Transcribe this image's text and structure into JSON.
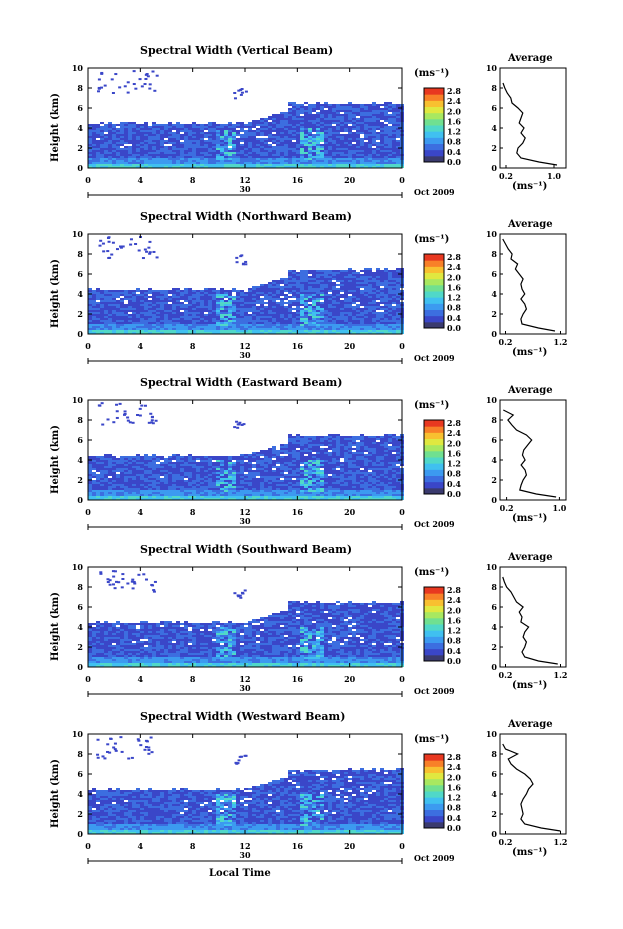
{
  "colorbar": {
    "unit": "(ms⁻¹)",
    "ticks": [
      "2.8",
      "2.4",
      "2.0",
      "1.6",
      "1.2",
      "0.8",
      "0.4",
      "0.0"
    ],
    "colors": [
      "#3a3a6e",
      "#3a46c8",
      "#3c6ee0",
      "#3c9af0",
      "#40c0f0",
      "#50d8c8",
      "#70e090",
      "#a8e860",
      "#e0e840",
      "#f8c030",
      "#f88028",
      "#e83820"
    ]
  },
  "x_ticks": [
    "0",
    "4",
    "8",
    "12",
    "16",
    "20",
    "0"
  ],
  "y_ticks": [
    "10",
    "8",
    "6",
    "4",
    "2",
    "0"
  ],
  "day_label": "30",
  "date_label": "Oct 2009",
  "ylabel": "Height (km)",
  "xlabel": "Local Time",
  "avg_title": "Average",
  "avg_xlabel": "(ms⁻¹)",
  "chart_data": [
    {
      "type": "heatmap",
      "title": "Spectral Width (Vertical Beam)",
      "xlabel": "",
      "ylabel": "Height (km)",
      "xlim": [
        0,
        24
      ],
      "ylim": [
        0,
        10
      ],
      "profile": {
        "title": "Average",
        "xticks": [
          "0.2",
          "1.0"
        ],
        "xlim": [
          0.1,
          1.2
        ],
        "height": [
          0.3,
          0.6,
          1.0,
          1.5,
          2.0,
          2.5,
          3.0,
          3.5,
          4.0,
          4.5,
          5.0,
          5.5,
          6.0,
          6.5,
          7.0,
          7.5,
          8.0,
          8.5
        ],
        "width": [
          1.05,
          0.75,
          0.45,
          0.38,
          0.4,
          0.48,
          0.52,
          0.45,
          0.5,
          0.42,
          0.45,
          0.48,
          0.4,
          0.3,
          0.28,
          0.22,
          0.18,
          0.15
        ]
      }
    },
    {
      "type": "heatmap",
      "title": "Spectral Width (Northward Beam)",
      "xlabel": "",
      "ylabel": "Height (km)",
      "xlim": [
        0,
        24
      ],
      "ylim": [
        0,
        10
      ],
      "profile": {
        "title": "Average",
        "xticks": [
          "0.2",
          "1.2"
        ],
        "xlim": [
          0.1,
          1.3
        ],
        "height": [
          0.3,
          0.6,
          1.0,
          1.5,
          2.0,
          2.5,
          3.0,
          3.5,
          4.0,
          4.5,
          5.0,
          5.5,
          6.0,
          6.5,
          7.0,
          7.5,
          8.0,
          8.5,
          9.0,
          9.5
        ],
        "width": [
          1.1,
          0.8,
          0.5,
          0.48,
          0.52,
          0.58,
          0.55,
          0.48,
          0.55,
          0.5,
          0.48,
          0.52,
          0.45,
          0.38,
          0.42,
          0.3,
          0.32,
          0.25,
          0.2,
          0.15
        ]
      }
    },
    {
      "type": "heatmap",
      "title": "Spectral Width (Eastward Beam)",
      "xlabel": "",
      "ylabel": "Height (km)",
      "xlim": [
        0,
        24
      ],
      "ylim": [
        0,
        10
      ],
      "profile": {
        "title": "Average",
        "xticks": [
          "0.2",
          "1.0"
        ],
        "xlim": [
          0.1,
          1.1
        ],
        "height": [
          0.3,
          0.6,
          1.0,
          1.5,
          2.0,
          2.5,
          3.0,
          3.5,
          4.0,
          4.5,
          5.0,
          5.5,
          6.0,
          6.5,
          7.0,
          7.5,
          8.0,
          8.5,
          9.0
        ],
        "width": [
          0.95,
          0.65,
          0.4,
          0.42,
          0.45,
          0.5,
          0.48,
          0.42,
          0.48,
          0.44,
          0.46,
          0.52,
          0.58,
          0.5,
          0.35,
          0.28,
          0.22,
          0.3,
          0.15
        ]
      }
    },
    {
      "type": "heatmap",
      "title": "Spectral Width (Southward Beam)",
      "xlabel": "",
      "ylabel": "Height (km)",
      "xlim": [
        0,
        24
      ],
      "ylim": [
        0,
        10
      ],
      "profile": {
        "title": "Average",
        "xticks": [
          "0.2",
          "1.2"
        ],
        "xlim": [
          0.1,
          1.3
        ],
        "height": [
          0.3,
          0.6,
          1.0,
          1.5,
          2.0,
          2.5,
          3.0,
          3.5,
          4.0,
          4.5,
          5.0,
          5.5,
          6.0,
          6.5,
          7.0,
          7.5,
          8.0,
          8.5,
          9.0
        ],
        "width": [
          1.15,
          0.8,
          0.55,
          0.5,
          0.55,
          0.58,
          0.52,
          0.55,
          0.62,
          0.48,
          0.5,
          0.45,
          0.52,
          0.4,
          0.35,
          0.3,
          0.22,
          0.18,
          0.15
        ]
      }
    },
    {
      "type": "heatmap",
      "title": "Spectral Width (Westward Beam)",
      "xlabel": "Local Time",
      "ylabel": "Height (km)",
      "xlim": [
        0,
        24
      ],
      "ylim": [
        0,
        10
      ],
      "profile": {
        "title": "Average",
        "xticks": [
          "0.2",
          "1.2"
        ],
        "xlim": [
          0.1,
          1.3
        ],
        "height": [
          0.3,
          0.6,
          1.0,
          1.5,
          2.0,
          2.5,
          3.0,
          3.5,
          4.0,
          4.5,
          5.0,
          5.5,
          6.0,
          6.5,
          7.0,
          7.5,
          8.0,
          8.5,
          9.0
        ],
        "width": [
          1.2,
          0.85,
          0.55,
          0.48,
          0.52,
          0.5,
          0.48,
          0.52,
          0.58,
          0.62,
          0.7,
          0.65,
          0.55,
          0.4,
          0.3,
          0.25,
          0.42,
          0.2,
          0.15
        ]
      }
    }
  ]
}
